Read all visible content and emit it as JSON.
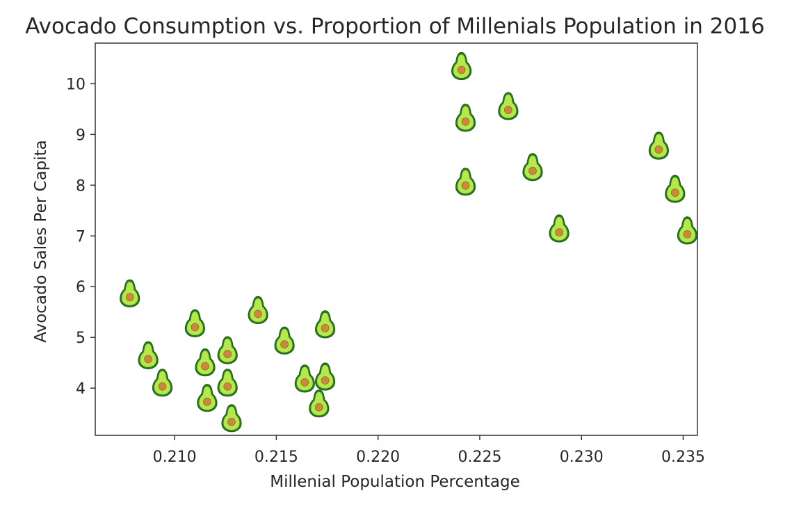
{
  "chart_data": {
    "type": "scatter",
    "title": "Avocado Consumption vs. Proportion of Millenials Population in 2016",
    "xlabel": "Millenial Population Percentage",
    "ylabel": "Avocado Sales Per Capita",
    "xlim": [
      0.2061,
      0.2357
    ],
    "ylim": [
      3.07,
      10.8
    ],
    "xticks": [
      "0.210",
      "0.215",
      "0.220",
      "0.225",
      "0.230",
      "0.235"
    ],
    "yticks": [
      "4",
      "5",
      "6",
      "7",
      "8",
      "9",
      "10"
    ],
    "grid": false,
    "marker": "avocado-icon",
    "colors": {
      "avocado_flesh": "#b5e84a",
      "avocado_outline": "#1f5e1a",
      "avocado_pit": "#c98a3c",
      "axes": "#333333",
      "text": "#262626"
    },
    "points": [
      {
        "x": 0.2078,
        "y": 5.82
      },
      {
        "x": 0.2087,
        "y": 4.6
      },
      {
        "x": 0.2094,
        "y": 4.06
      },
      {
        "x": 0.211,
        "y": 5.23
      },
      {
        "x": 0.2115,
        "y": 4.46
      },
      {
        "x": 0.2116,
        "y": 3.76
      },
      {
        "x": 0.2126,
        "y": 4.7
      },
      {
        "x": 0.2126,
        "y": 4.06
      },
      {
        "x": 0.2128,
        "y": 3.36
      },
      {
        "x": 0.2141,
        "y": 5.49
      },
      {
        "x": 0.2154,
        "y": 4.89
      },
      {
        "x": 0.2164,
        "y": 4.14
      },
      {
        "x": 0.2171,
        "y": 3.65
      },
      {
        "x": 0.2174,
        "y": 5.21
      },
      {
        "x": 0.2174,
        "y": 4.18
      },
      {
        "x": 0.2241,
        "y": 10.3
      },
      {
        "x": 0.2243,
        "y": 9.28
      },
      {
        "x": 0.2243,
        "y": 8.02
      },
      {
        "x": 0.2264,
        "y": 9.51
      },
      {
        "x": 0.2276,
        "y": 8.31
      },
      {
        "x": 0.2289,
        "y": 7.1
      },
      {
        "x": 0.2338,
        "y": 8.73
      },
      {
        "x": 0.2346,
        "y": 7.88
      },
      {
        "x": 0.2352,
        "y": 7.06
      }
    ]
  }
}
